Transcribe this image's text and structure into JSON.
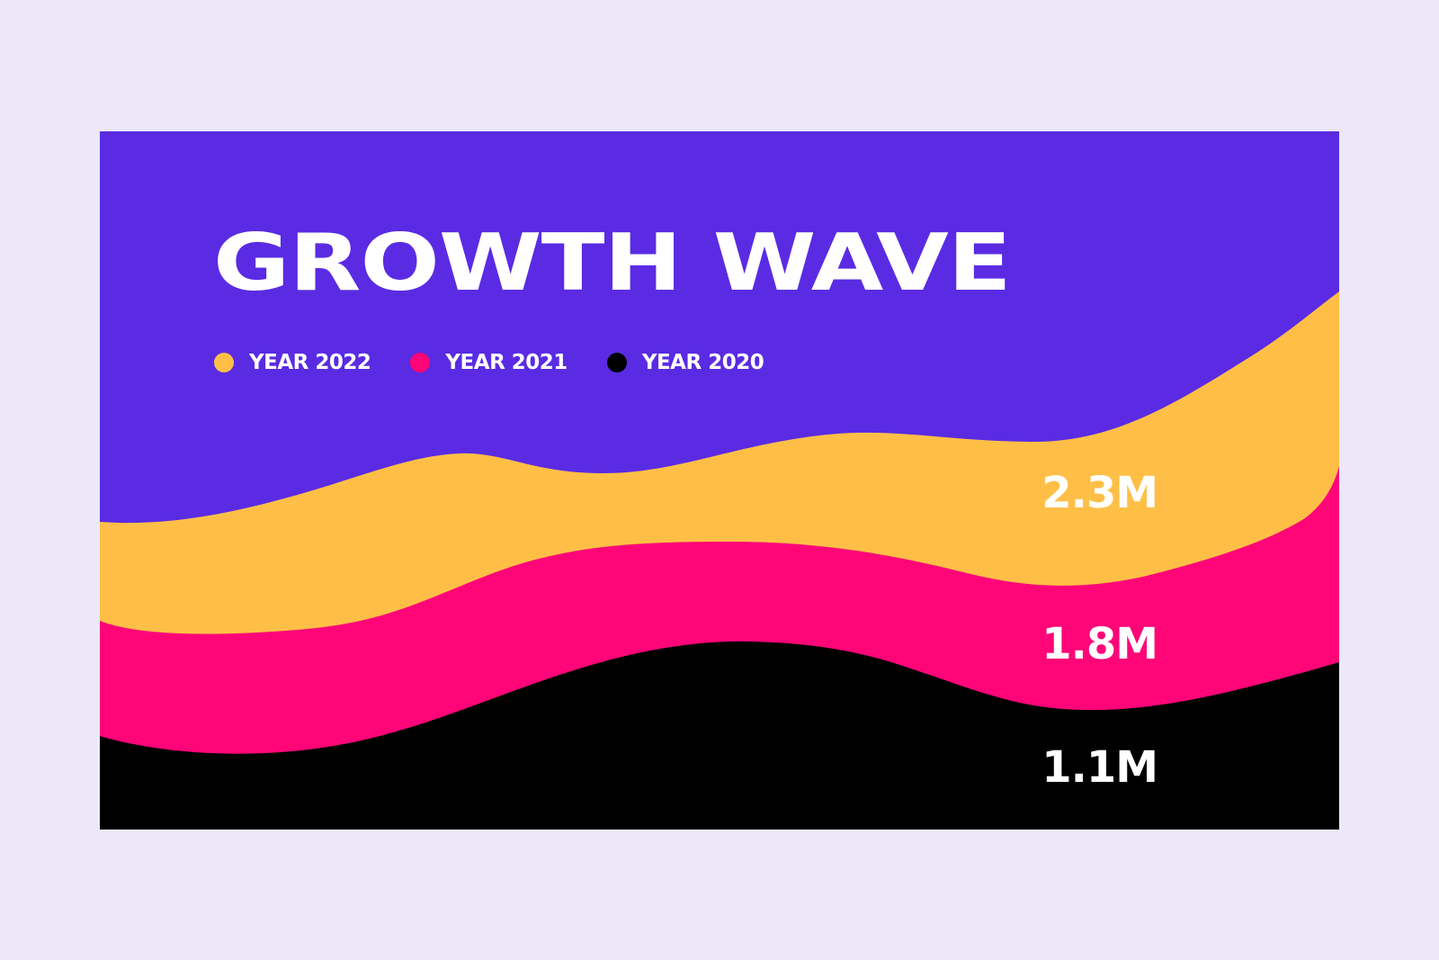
{
  "chart_data": {
    "type": "area",
    "title": "GROWTH WAVE",
    "legend": "top-left",
    "series": [
      {
        "name": "YEAR 2022",
        "value_label": "2.3M",
        "color": "#ffbf47"
      },
      {
        "name": "YEAR 2021",
        "value_label": "1.8M",
        "color": "#ff0578"
      },
      {
        "name": "YEAR 2020",
        "value_label": "1.1M",
        "color": "#000000"
      }
    ],
    "background_color": "#5a2be3",
    "grid": false
  }
}
